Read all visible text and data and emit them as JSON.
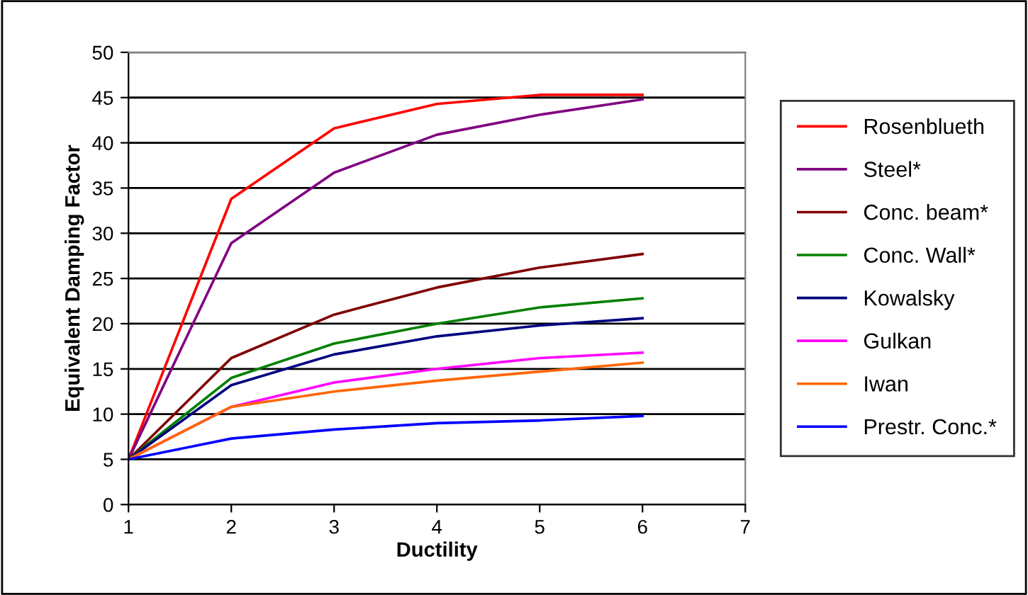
{
  "chart_data": {
    "type": "line",
    "xlabel": "Ductility",
    "ylabel": "Equivalent Damping Factor",
    "x": [
      1,
      2,
      3,
      4,
      5,
      6
    ],
    "xlim": [
      1,
      7
    ],
    "xticks": [
      1,
      2,
      3,
      4,
      5,
      6,
      7
    ],
    "ylim": [
      0,
      50
    ],
    "yticks": [
      0,
      5,
      10,
      15,
      20,
      25,
      30,
      35,
      40,
      45,
      50
    ],
    "grid": "y",
    "legend": "right",
    "marker": "none",
    "line_style": "solid",
    "series": [
      {
        "name": "Rosenblueth",
        "color": "#ff0000",
        "values": [
          5,
          33.8,
          41.6,
          44.3,
          45.3,
          45.3
        ]
      },
      {
        "name": "Steel*",
        "color": "#800080",
        "values": [
          5,
          28.9,
          36.7,
          40.9,
          43.1,
          44.8
        ]
      },
      {
        "name": "Conc. beam*",
        "color": "#800000",
        "values": [
          5,
          16.2,
          21.0,
          24.0,
          26.2,
          27.7
        ]
      },
      {
        "name": "Conc. Wall*",
        "color": "#008000",
        "values": [
          5,
          14.0,
          17.8,
          20.0,
          21.8,
          22.8
        ]
      },
      {
        "name": "Kowalsky",
        "color": "#000080",
        "values": [
          5,
          13.2,
          16.6,
          18.6,
          19.8,
          20.6
        ]
      },
      {
        "name": "Gulkan",
        "color": "#ff00ff",
        "values": [
          5,
          10.8,
          13.5,
          15.0,
          16.2,
          16.8
        ]
      },
      {
        "name": "Iwan",
        "color": "#ff6600",
        "values": [
          5,
          10.8,
          12.5,
          13.7,
          14.7,
          15.7
        ]
      },
      {
        "name": "Prestr. Conc.*",
        "color": "#0000ff",
        "values": [
          5,
          7.3,
          8.3,
          9.0,
          9.3,
          9.8
        ]
      }
    ]
  }
}
